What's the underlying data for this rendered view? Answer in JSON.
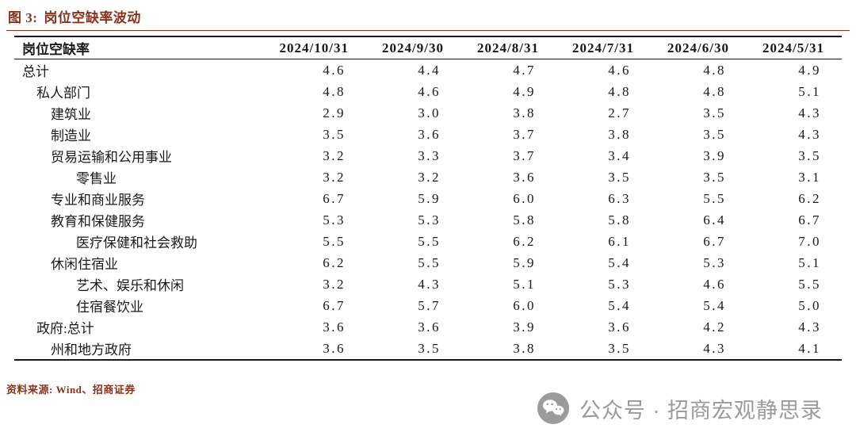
{
  "title": {
    "label": "图 3:",
    "text": "岗位空缺率波动"
  },
  "table": {
    "header": [
      "岗位空缺率",
      "2024/10/31",
      "2024/9/30",
      "2024/8/31",
      "2024/7/31",
      "2024/6/30",
      "2024/5/31"
    ],
    "rows": [
      {
        "label": "总计",
        "indent": 0,
        "values": [
          "4.6",
          "4.4",
          "4.7",
          "4.6",
          "4.8",
          "4.9"
        ]
      },
      {
        "label": "私人部门",
        "indent": 1,
        "values": [
          "4.8",
          "4.6",
          "4.9",
          "4.8",
          "4.8",
          "5.1"
        ]
      },
      {
        "label": "建筑业",
        "indent": 2,
        "values": [
          "2.9",
          "3.0",
          "3.8",
          "2.7",
          "3.5",
          "4.3"
        ]
      },
      {
        "label": "制造业",
        "indent": 2,
        "values": [
          "3.5",
          "3.6",
          "3.7",
          "3.8",
          "3.5",
          "4.3"
        ]
      },
      {
        "label": "贸易运输和公用事业",
        "indent": 2,
        "values": [
          "3.2",
          "3.3",
          "3.7",
          "3.4",
          "3.9",
          "3.5"
        ]
      },
      {
        "label": "零售业",
        "indent": 3,
        "values": [
          "3.2",
          "3.2",
          "3.6",
          "3.5",
          "3.5",
          "3.1"
        ]
      },
      {
        "label": "专业和商业服务",
        "indent": 2,
        "values": [
          "6.7",
          "5.9",
          "6.0",
          "6.3",
          "5.5",
          "6.2"
        ]
      },
      {
        "label": "教育和保健服务",
        "indent": 2,
        "values": [
          "5.3",
          "5.3",
          "5.8",
          "5.8",
          "6.4",
          "6.7"
        ]
      },
      {
        "label": "医疗保健和社会救助",
        "indent": 3,
        "values": [
          "5.5",
          "5.5",
          "6.2",
          "6.1",
          "6.7",
          "7.0"
        ]
      },
      {
        "label": "休闲住宿业",
        "indent": 2,
        "values": [
          "6.2",
          "5.5",
          "5.9",
          "5.4",
          "5.3",
          "5.1"
        ]
      },
      {
        "label": "艺术、娱乐和休闲",
        "indent": 3,
        "values": [
          "3.2",
          "4.3",
          "5.1",
          "5.3",
          "4.6",
          "5.5"
        ]
      },
      {
        "label": "住宿餐饮业",
        "indent": 3,
        "values": [
          "6.7",
          "5.7",
          "6.0",
          "5.4",
          "5.4",
          "5.0"
        ]
      },
      {
        "label": "政府:总计",
        "indent": 1,
        "values": [
          "3.6",
          "3.6",
          "3.9",
          "3.6",
          "4.2",
          "4.3"
        ]
      },
      {
        "label": "州和地方政府",
        "indent": 2,
        "values": [
          "3.6",
          "3.5",
          "3.8",
          "3.5",
          "4.3",
          "4.1"
        ]
      }
    ]
  },
  "footer": {
    "source": "资料来源: Wind、招商证券"
  },
  "watermark": {
    "icon": "wechat-icon",
    "text": "公众号 · 招商宏观静思录"
  },
  "colors": {
    "accent": "#8b311c",
    "watermark_gray": "#9b9b9b",
    "table_border": "#1a1a1a"
  }
}
